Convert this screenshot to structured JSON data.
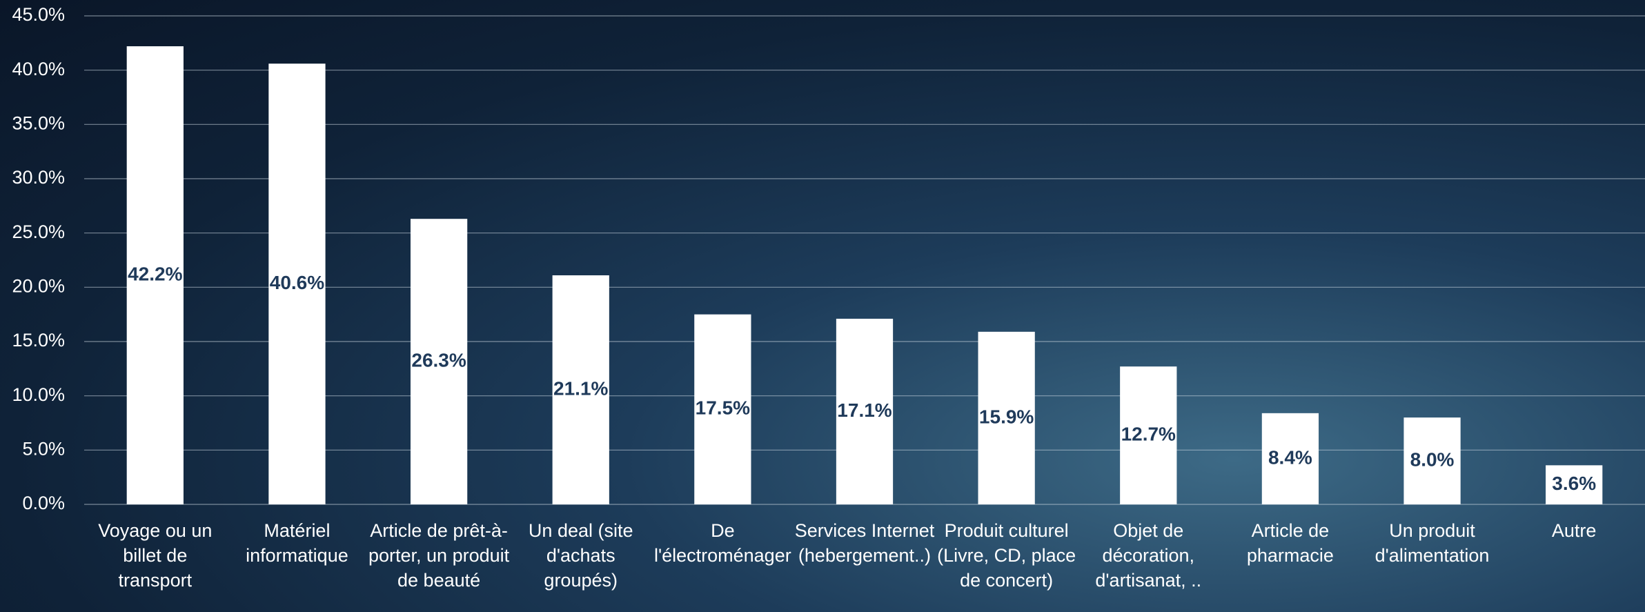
{
  "chart_data": {
    "type": "bar",
    "categories": [
      "Voyage ou un billet de transport",
      "Matériel informatique",
      "Article de prêt-à-porter, un produit de beauté",
      "Un deal (site d'achats groupés)",
      "De l'électroménager",
      "Services Internet (hebergement..)",
      "Produit culturel (Livre, CD, place de concert)",
      "Objet de décoration, d'artisanat, ..",
      "Article de pharmacie",
      "Un produit d'alimentation",
      "Autre"
    ],
    "values": [
      42.2,
      40.6,
      26.3,
      21.1,
      17.5,
      17.1,
      15.9,
      12.7,
      8.4,
      8.0,
      3.6
    ],
    "value_labels": [
      "42.2%",
      "40.6%",
      "26.3%",
      "21.1%",
      "17.5%",
      "17.1%",
      "15.9%",
      "12.7%",
      "8.4%",
      "8.0%",
      "3.6%"
    ],
    "color": "#ffffff",
    "ylim": [
      0,
      45
    ],
    "yticks": [
      {
        "value": 0,
        "label": "0.0%"
      },
      {
        "value": 5,
        "label": "5.0%"
      },
      {
        "value": 10,
        "label": "10.0%"
      },
      {
        "value": 15,
        "label": "15.0%"
      },
      {
        "value": 20,
        "label": "20.0%"
      },
      {
        "value": 25,
        "label": "25.0%"
      },
      {
        "value": 30,
        "label": "30.0%"
      },
      {
        "value": 35,
        "label": "35.0%"
      },
      {
        "value": 40,
        "label": "40.0%"
      },
      {
        "value": 45,
        "label": "45.0%"
      }
    ],
    "grid": true
  }
}
